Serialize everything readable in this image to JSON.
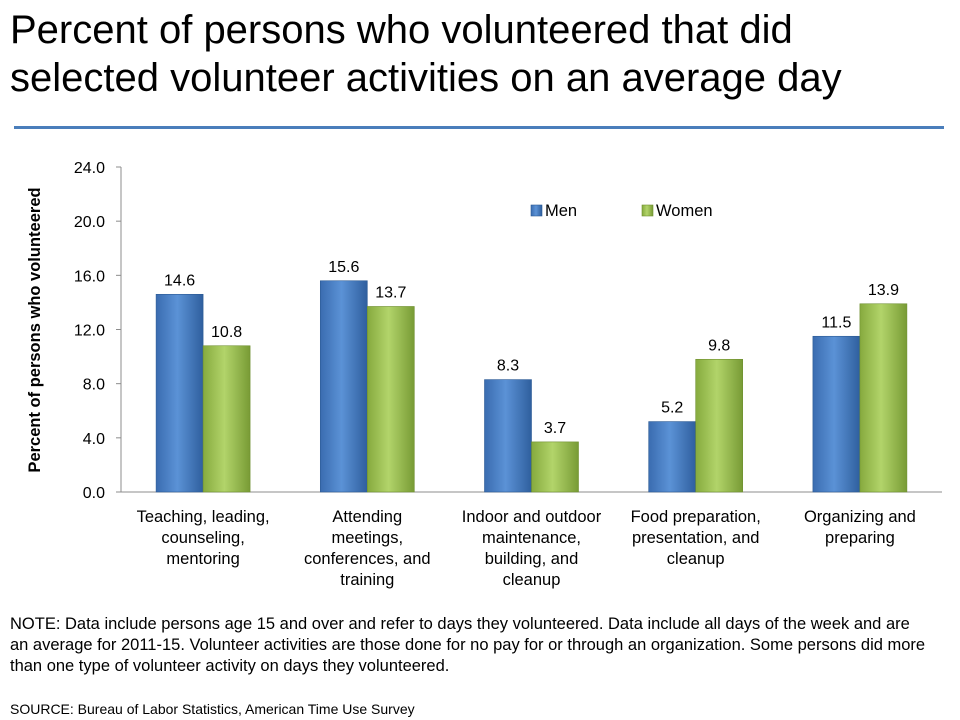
{
  "title_line1": "Percent of persons who volunteered that did",
  "title_line2": "selected volunteer activities on an average day",
  "note": "NOTE: Data include persons age 15 and over and refer to days they volunteered. Data include all days of the week and are an average for 2011-15. Volunteer activities are those done for no pay for or through an organization. Some persons did more than one type of volunteer activity on days they volunteered.",
  "source": "SOURCE: Bureau of Labor Statistics, American Time Use Survey",
  "colors": {
    "men": "#4a7ebb",
    "women": "#9bbb59",
    "rule": "#4a7ebb"
  },
  "chart_data": {
    "type": "bar",
    "title": "Percent of persons who volunteered that did selected volunteer activities on an average day",
    "ylabel": "Percent of persons who volunteered",
    "xlabel": "",
    "ylim": [
      0,
      24
    ],
    "yticks": [
      "0.0",
      "4.0",
      "8.0",
      "12.0",
      "16.0",
      "20.0",
      "24.0"
    ],
    "categories": [
      [
        "Teaching, leading,",
        "counseling,",
        "mentoring"
      ],
      [
        "Attending",
        "meetings,",
        "conferences, and",
        "training"
      ],
      [
        "Indoor and outdoor",
        "maintenance,",
        "building, and",
        "cleanup"
      ],
      [
        "Food preparation,",
        "presentation, and",
        "cleanup"
      ],
      [
        "Organizing and",
        "preparing"
      ]
    ],
    "series": [
      {
        "name": "Men",
        "values": [
          14.6,
          15.6,
          8.3,
          5.2,
          11.5
        ],
        "labels": [
          "14.6",
          "15.6",
          "8.3",
          "5.2",
          "11.5"
        ]
      },
      {
        "name": "Women",
        "values": [
          10.8,
          13.7,
          3.7,
          9.8,
          13.9
        ],
        "labels": [
          "10.8",
          "13.7",
          "3.7",
          "9.8",
          "13.9"
        ]
      }
    ],
    "legend_position": "top-right"
  }
}
